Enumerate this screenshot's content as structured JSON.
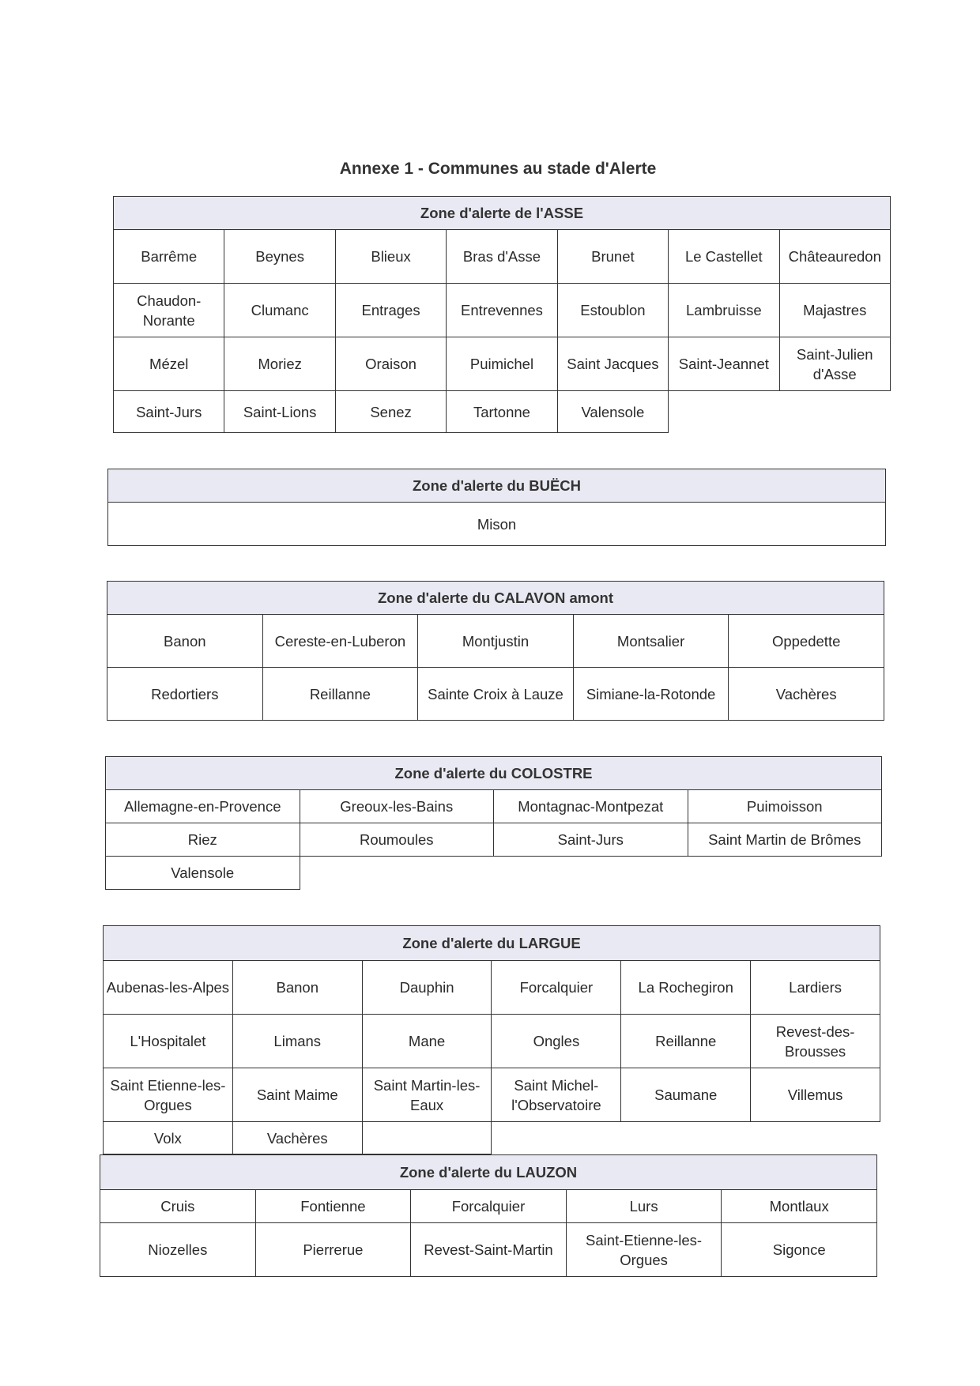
{
  "title": "Annexe 1 - Communes au stade d'Alerte",
  "header_bg": "#e9e9f3",
  "zones": [
    {
      "heading": "Zone d'alerte de l'ASSE",
      "rows": [
        [
          "Barrême",
          "Beynes",
          "Blieux",
          "Bras d'Asse",
          "Brunet",
          "Le Castellet",
          "Châteauredon"
        ],
        [
          "Chaudon-Norante",
          "Clumanc",
          "Entrages",
          "Entrevennes",
          "Estoublon",
          "Lambruisse",
          "Majastres"
        ],
        [
          "Mézel",
          "Moriez",
          "Oraison",
          "Puimichel",
          "Saint Jacques",
          "Saint-Jeannet",
          "Saint-Julien d'Asse"
        ],
        [
          "Saint-Jurs",
          "Saint-Lions",
          "Senez",
          "Tartonne",
          "Valensole"
        ]
      ]
    },
    {
      "heading": "Zone d'alerte du BUËCH",
      "rows": [
        [
          "Mison"
        ]
      ]
    },
    {
      "heading": "Zone d'alerte du CALAVON amont",
      "rows": [
        [
          "Banon",
          "Cereste-en-Luberon",
          "Montjustin",
          "Montsalier",
          "Oppedette"
        ],
        [
          "Redortiers",
          "Reillanne",
          "Sainte Croix à Lauze",
          "Simiane-la-Rotonde",
          "Vachères"
        ]
      ]
    },
    {
      "heading": "Zone d'alerte du COLOSTRE",
      "rows": [
        [
          "Allemagne-en-Provence",
          "Greoux-les-Bains",
          "Montagnac-Montpezat",
          "Puimoisson"
        ],
        [
          "Riez",
          "Roumoules",
          "Saint-Jurs",
          "Saint Martin de Brômes"
        ],
        [
          "Valensole"
        ]
      ]
    },
    {
      "heading": "Zone d'alerte du LARGUE",
      "rows": [
        [
          "Aubenas-les-Alpes",
          "Banon",
          "Dauphin",
          "Forcalquier",
          "La Rochegiron",
          "Lardiers"
        ],
        [
          "L'Hospitalet",
          "Limans",
          "Mane",
          "Ongles",
          "Reillanne",
          "Revest-des-Brousses"
        ],
        [
          "Saint Etienne-les-Orgues",
          "Saint Maime",
          "Saint Martin-les-Eaux",
          "Saint Michel-l'Observatoire",
          "Saumane",
          "Villemus"
        ],
        [
          "Volx",
          "Vachères",
          ""
        ]
      ]
    },
    {
      "heading": "Zone d'alerte du LAUZON",
      "rows": [
        [
          "Cruis",
          "Fontienne",
          "Forcalquier",
          "Lurs",
          "Montlaux"
        ],
        [
          "Niozelles",
          "Pierrerue",
          "Revest-Saint-Martin",
          "Saint-Etienne-les-Orgues",
          "Sigonce"
        ]
      ]
    }
  ]
}
